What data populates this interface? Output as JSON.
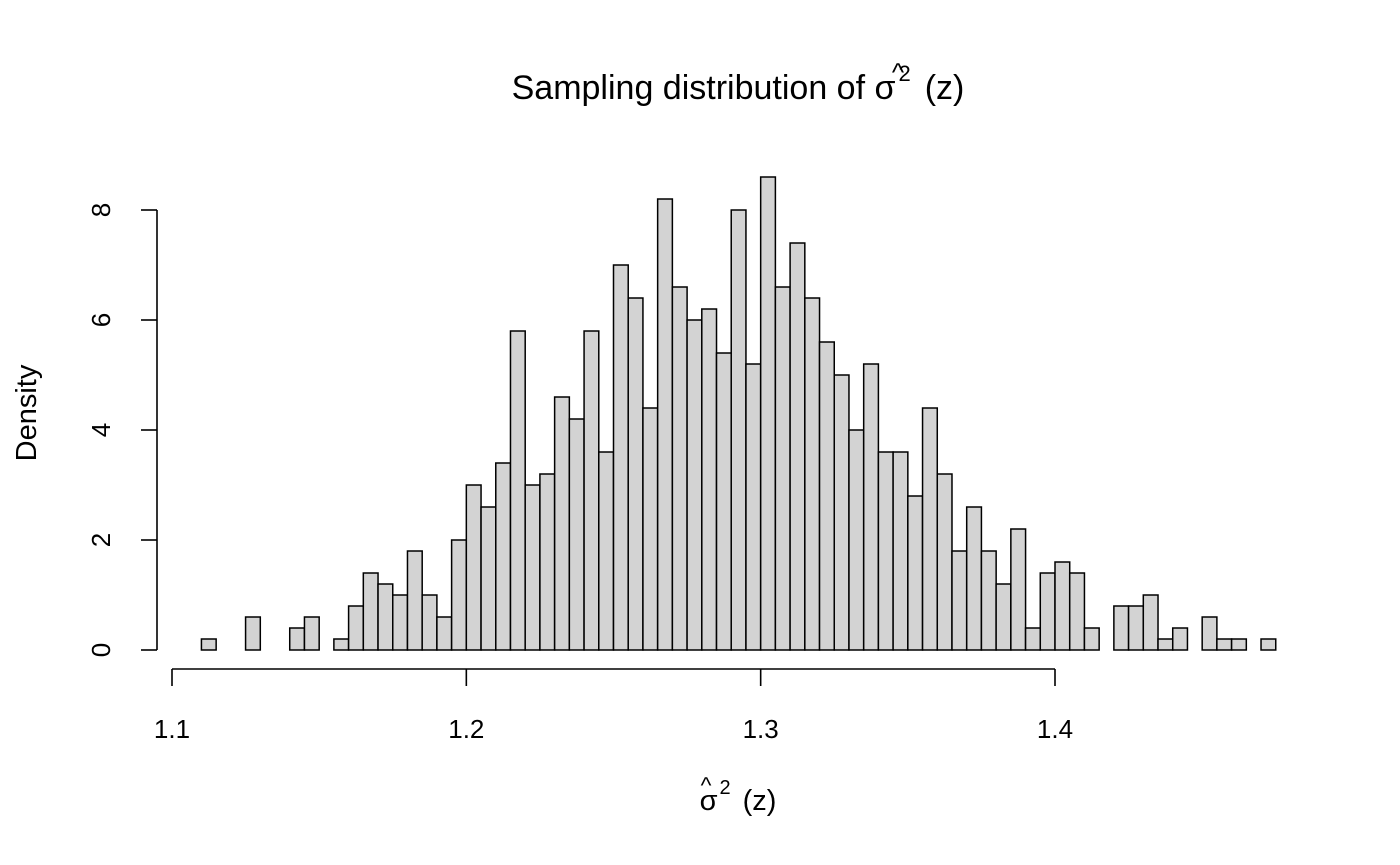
{
  "chart_data": {
    "type": "bar",
    "title": "Sampling distribution of σ̂² (z)",
    "title_parts": {
      "prefix": "Sampling distribution of ",
      "symbol": "σ",
      "hat": "^",
      "power": "2",
      "arg": "(z)"
    },
    "xlabel_parts": {
      "symbol": "σ",
      "hat": "^",
      "power": "2",
      "arg": "(z)"
    },
    "ylabel": "Density",
    "bin_start": 1.11,
    "bin_width": 0.005,
    "values": [
      0.2,
      0,
      0,
      0.6,
      0,
      0,
      0.4,
      0.6,
      0,
      0.2,
      0.8,
      1.4,
      1.2,
      1.0,
      1.8,
      1.0,
      0.6,
      2.0,
      3.0,
      2.6,
      3.4,
      5.8,
      3.0,
      3.2,
      4.6,
      4.2,
      5.8,
      3.6,
      7.0,
      6.4,
      4.4,
      8.2,
      6.6,
      6.0,
      6.2,
      5.4,
      8.0,
      5.2,
      8.6,
      6.6,
      7.4,
      6.4,
      5.6,
      5.0,
      4.0,
      5.2,
      3.6,
      3.6,
      2.8,
      4.4,
      3.2,
      1.8,
      2.6,
      1.8,
      1.2,
      2.2,
      0.4,
      1.4,
      1.6,
      1.4,
      0.4,
      0,
      0.8,
      0.8,
      1.0,
      0.2,
      0.4,
      0,
      0.6,
      0.2,
      0.2,
      0,
      0.2
    ],
    "xlim": [
      1.1,
      1.4
    ],
    "xticks": [
      1.1,
      1.2,
      1.3,
      1.4
    ],
    "xtick_labels": [
      "1.1",
      "1.2",
      "1.3",
      "1.4"
    ],
    "yticks": [
      0,
      2,
      4,
      6,
      8
    ],
    "ytick_labels": [
      "0",
      "2",
      "4",
      "6",
      "8"
    ],
    "grid": false,
    "legend": "none",
    "bar_fill": "#d3d3d3",
    "bar_stroke": "#000000"
  }
}
